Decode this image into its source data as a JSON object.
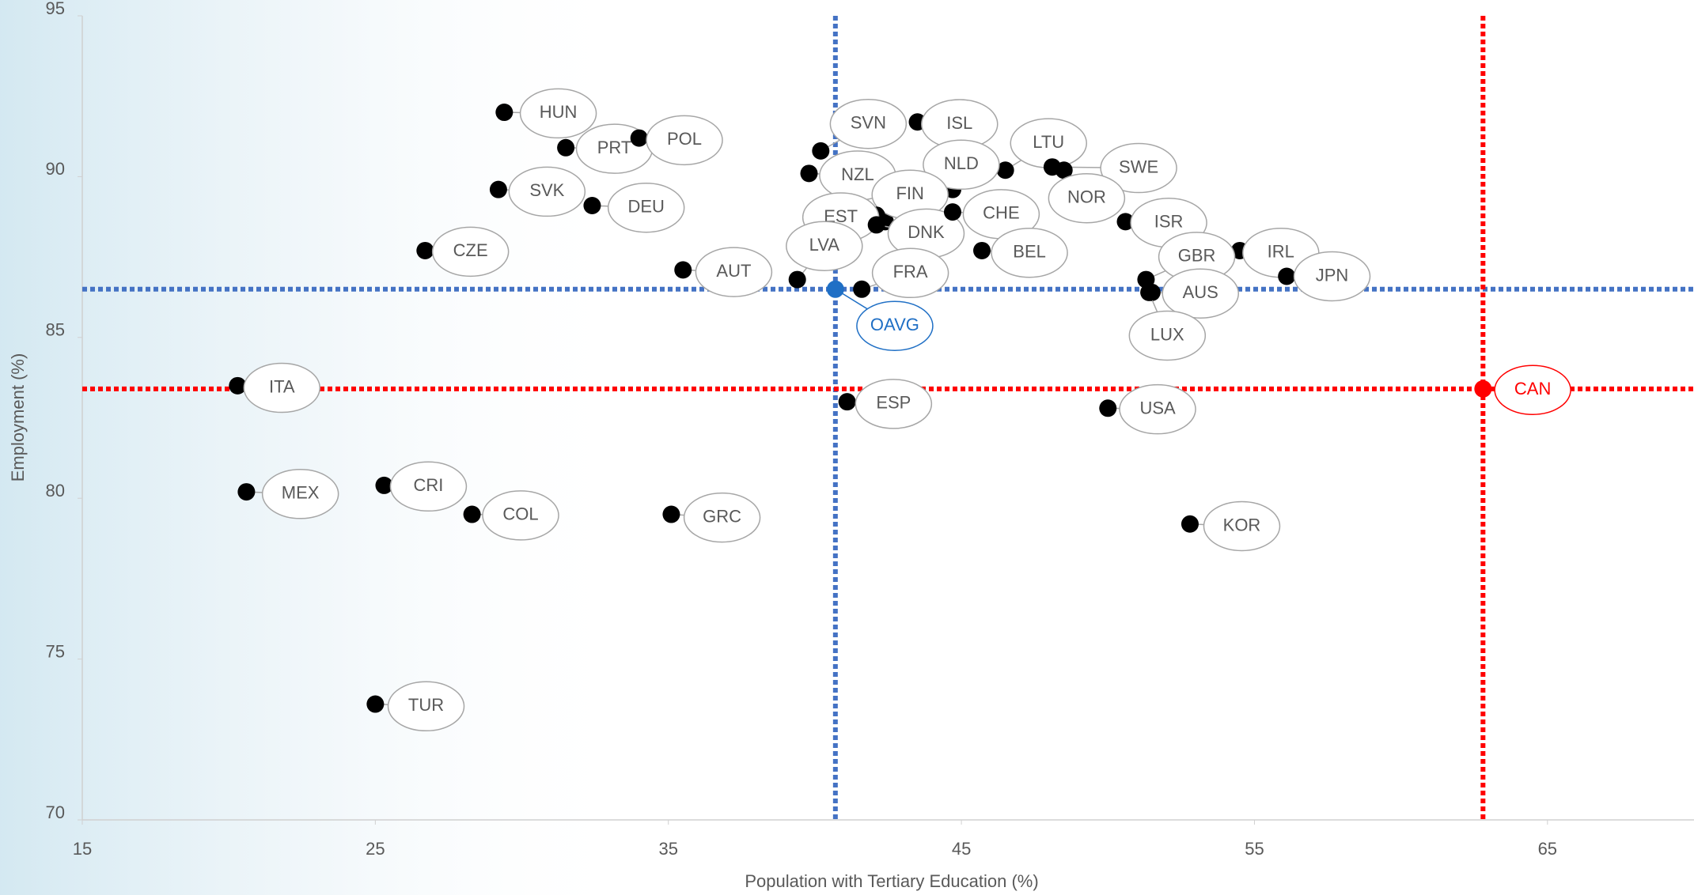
{
  "chart_data": {
    "type": "scatter",
    "x_label": "Population with Tertiary Education (%)",
    "y_label": "Employment (%)",
    "xlim": [
      15,
      70
    ],
    "xticks": [
      15,
      25,
      35,
      45,
      55,
      65
    ],
    "ylim": [
      70,
      95
    ],
    "yticks": [
      70,
      75,
      80,
      85,
      90,
      95
    ],
    "color": "#000000",
    "points": [
      {
        "label": "HUN",
        "x": 29.4,
        "y": 92.0
      },
      {
        "label": "PRT",
        "x": 31.5,
        "y": 90.9
      },
      {
        "label": "POL",
        "x": 34.0,
        "y": 91.2
      },
      {
        "label": "SVK",
        "x": 29.2,
        "y": 89.6
      },
      {
        "label": "DEU",
        "x": 32.4,
        "y": 89.1
      },
      {
        "label": "CZE",
        "x": 26.7,
        "y": 87.7
      },
      {
        "label": "AUT",
        "x": 35.5,
        "y": 87.1
      },
      {
        "label": "ITA",
        "x": 20.3,
        "y": 83.5
      },
      {
        "label": "MEX",
        "x": 20.6,
        "y": 80.2
      },
      {
        "label": "CRI",
        "x": 25.3,
        "y": 80.4
      },
      {
        "label": "COL",
        "x": 28.3,
        "y": 79.5
      },
      {
        "label": "GRC",
        "x": 35.1,
        "y": 79.5
      },
      {
        "label": "TUR",
        "x": 25.0,
        "y": 73.6
      },
      {
        "label": "SVN",
        "x": 40.2,
        "y": 90.8
      },
      {
        "label": "NZL",
        "x": 39.8,
        "y": 90.1
      },
      {
        "label": "ISL",
        "x": 43.5,
        "y": 91.7
      },
      {
        "label": "LTU",
        "x": 46.5,
        "y": 90.2
      },
      {
        "label": "NLD",
        "x": 44.7,
        "y": 89.6
      },
      {
        "label": "SWE",
        "x": 48.1,
        "y": 90.3
      },
      {
        "label": "NOR",
        "x": 48.5,
        "y": 90.2
      },
      {
        "label": "FIN",
        "x": 42.4,
        "y": 88.6
      },
      {
        "label": "EST",
        "x": 42.1,
        "y": 88.8
      },
      {
        "label": "DNK",
        "x": 42.1,
        "y": 88.5
      },
      {
        "label": "CHE",
        "x": 44.7,
        "y": 88.9
      },
      {
        "label": "BEL",
        "x": 45.7,
        "y": 87.7
      },
      {
        "label": "ISR",
        "x": 50.6,
        "y": 88.6
      },
      {
        "label": "IRL",
        "x": 54.5,
        "y": 87.7
      },
      {
        "label": "JPN",
        "x": 56.1,
        "y": 86.9
      },
      {
        "label": "GBR",
        "x": 51.3,
        "y": 86.8
      },
      {
        "label": "AUS",
        "x": 51.5,
        "y": 86.4
      },
      {
        "label": "LUX",
        "x": 51.4,
        "y": 86.4
      },
      {
        "label": "LVA",
        "x": 39.4,
        "y": 86.8
      },
      {
        "label": "FRA",
        "x": 41.6,
        "y": 86.5
      },
      {
        "label": "OAVG",
        "x": 40.7,
        "y": 86.5,
        "color": "#1f6fc5",
        "line_color": "#4472c4",
        "crosshair": true
      },
      {
        "label": "ESP",
        "x": 41.1,
        "y": 83.0
      },
      {
        "label": "USA",
        "x": 50.0,
        "y": 82.8
      },
      {
        "label": "KOR",
        "x": 52.8,
        "y": 79.2
      },
      {
        "label": "CAN",
        "x": 62.8,
        "y": 83.4,
        "color": "#ff0000",
        "line_color": "#ff0000",
        "crosshair": true
      }
    ]
  }
}
